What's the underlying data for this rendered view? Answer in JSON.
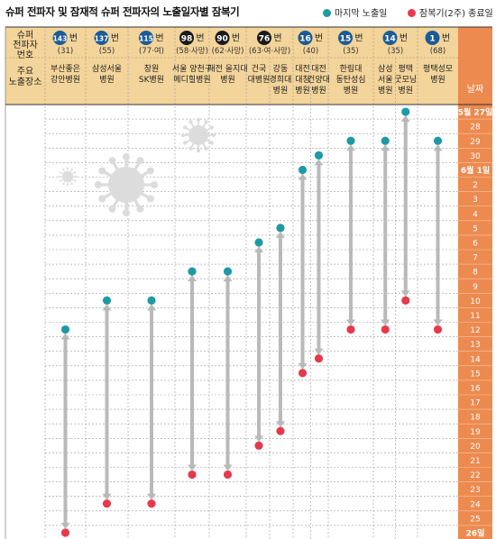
{
  "title": "슈퍼 전파자 및 잠재적 슈퍼 전파자의 노출일자별 잠복기",
  "legend": {
    "last_exposure": {
      "label": "마지막 노출일",
      "color": "#1f9aa5"
    },
    "incubation_end": {
      "label": "잠복기(2주) 종료일",
      "color": "#e53a4c"
    }
  },
  "header": {
    "row1_label": [
      "슈퍼",
      "전파자",
      "번호"
    ],
    "row2_label": [
      "주요",
      "노출장소"
    ],
    "date_label": "날짜",
    "num_suffix": "번"
  },
  "colors": {
    "header_bg": "#f3d49a",
    "date_col_bg": "#ec8a4f",
    "arrow": "#b9b9b9",
    "virus": "#dcdcdc"
  },
  "spreaders": [
    {
      "num": "143",
      "badge": "#1c5b96",
      "sub": "(31)",
      "place": [
        "부산좋은",
        "강안병원"
      ]
    },
    {
      "num": "137",
      "badge": "#1c5b96",
      "sub": "(55)",
      "place": [
        "삼성서울",
        "병원"
      ]
    },
    {
      "num": "115",
      "badge": "#1c5b96",
      "sub": "(77·여)",
      "place": [
        "창원",
        "SK병원"
      ]
    },
    {
      "num": "98",
      "badge": "#1a1a1a",
      "sub": "(58·사망)",
      "place": [
        "서울 양천구",
        "메디힐병원"
      ]
    },
    {
      "num": "90",
      "badge": "#1a1a1a",
      "sub": "(62·사망)",
      "place": [
        "대전 을지대",
        "병원"
      ]
    },
    {
      "num": "76",
      "badge": "#1a1a1a",
      "sub": "(63·여·사망)",
      "place": [
        "건국",
        "대병원"
      ],
      "place2": [
        "강동",
        "경희대",
        "병원"
      ]
    },
    {
      "num": "16",
      "badge": "#1c5b96",
      "sub": "(40)",
      "place": [
        "대전",
        "대청",
        "병원"
      ],
      "place2": [
        "대전",
        "건양대",
        "병원"
      ]
    },
    {
      "num": "15",
      "badge": "#1c5b96",
      "sub": "(35)",
      "place": [
        "한림대",
        "동탄성심",
        "병원"
      ]
    },
    {
      "num": "14",
      "badge": "#1c5b96",
      "sub": "(35)",
      "place": [
        "삼성",
        "서울",
        "병원"
      ],
      "place2": [
        "평택",
        "굿모닝",
        "병원"
      ]
    },
    {
      "num": "1",
      "badge": "#1c5b96",
      "sub": "(68)",
      "place": [
        "평택성모",
        "병원"
      ]
    }
  ],
  "dates": [
    "5월 27일",
    "28",
    "29",
    "30",
    "6월 1일",
    "2",
    "3",
    "4",
    "5",
    "6",
    "7",
    "8",
    "9",
    "10",
    "11",
    "12",
    "13",
    "14",
    "15",
    "16",
    "17",
    "18",
    "19",
    "20",
    "21",
    "22",
    "23",
    "24",
    "25",
    "26일"
  ],
  "chart_data": {
    "type": "range",
    "legend": [
      "마지막 노출일",
      "잠복기(2주) 종료일"
    ],
    "categories": [
      "143번",
      "137번",
      "115번",
      "98번",
      "90번",
      "76번 건국대병원",
      "76번 강동경희대병원",
      "16번 대전대청병원",
      "16번 대전건양대병원",
      "15번",
      "14번 삼성서울병원",
      "14번 평택굿모닝병원",
      "1번"
    ],
    "last_exposure": [
      "6월 12일",
      "6월 10일",
      "6월 10일",
      "6월 8일",
      "6월 8일",
      "6월 6일",
      "6월 5일",
      "6월 1일",
      "5월 31일",
      "5월 29일",
      "5월 29일",
      "5월 27일",
      "5월 29일"
    ],
    "incubation_end": [
      "6월 26일",
      "6월 24일",
      "6월 24일",
      "6월 22일",
      "6월 22일",
      "6월 20일",
      "6월 19일",
      "6월 15일",
      "6월 14일",
      "6월 12일",
      "6월 12일",
      "6월 10일",
      "6월 12일"
    ],
    "last_exposure_row": [
      15,
      13,
      13,
      11,
      11,
      9,
      8,
      4,
      3,
      2,
      2,
      0,
      2
    ],
    "incubation_end_row": [
      29,
      27,
      27,
      25,
      25,
      23,
      22,
      18,
      17,
      15,
      15,
      13,
      15
    ]
  }
}
